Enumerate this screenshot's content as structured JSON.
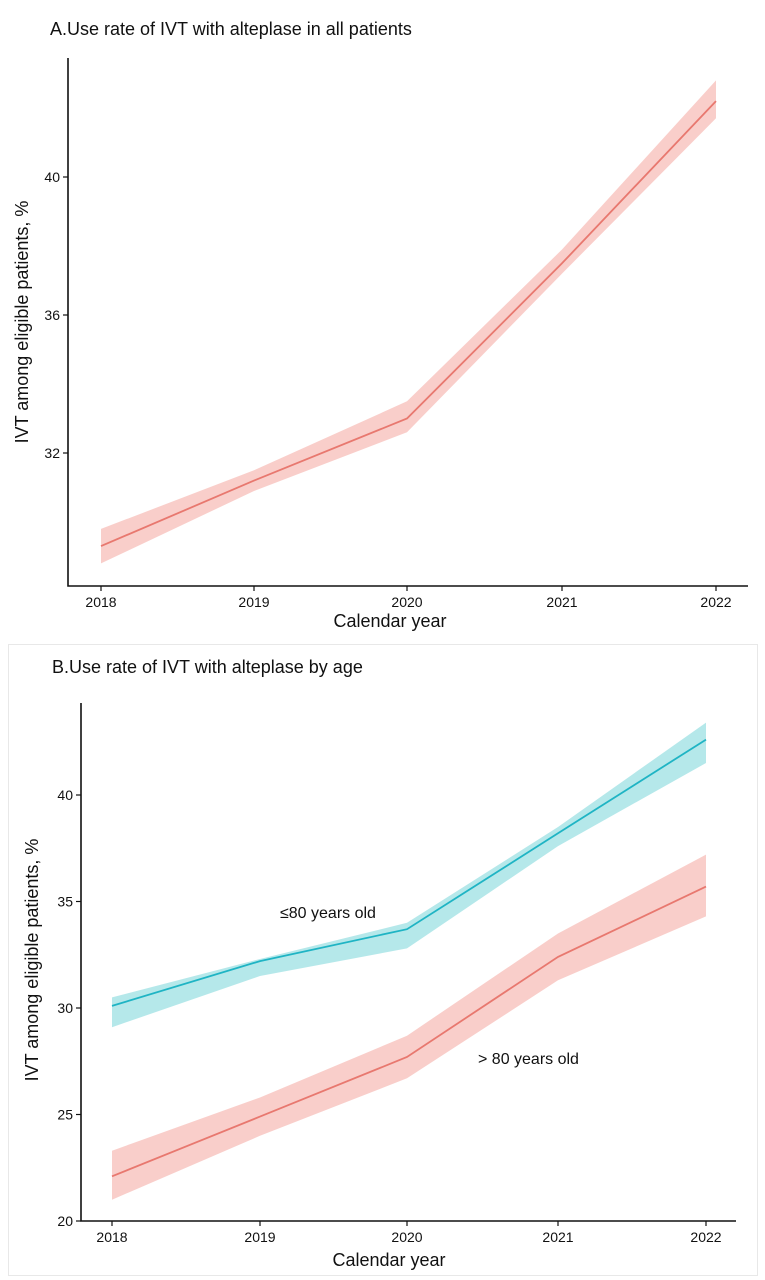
{
  "chart_data": [
    {
      "type": "line",
      "title": "A.Use rate of IVT with  alteplase in all patients",
      "xlabel": "Calendar year",
      "ylabel": "IVT among eligible patients, %",
      "x": [
        "2018",
        "2019",
        "2020",
        "2021",
        "2022"
      ],
      "yticks": [
        32,
        36,
        40
      ],
      "ylim": [
        28.3,
        43.6
      ],
      "series": [
        {
          "color": "#e8786f",
          "band_color": "#f8c5c1",
          "values": [
            29.3,
            31.2,
            33.0,
            37.5,
            42.2
          ],
          "lower": [
            28.8,
            30.9,
            32.6,
            37.2,
            41.7
          ],
          "upper": [
            29.8,
            31.5,
            33.5,
            37.9,
            42.8
          ]
        }
      ]
    },
    {
      "type": "line",
      "title": "B.Use rate of IVT with alteplase by age",
      "xlabel": "Calendar year",
      "ylabel": "IVT among eligible patients, %",
      "x": [
        "2018",
        "2019",
        "2020",
        "2021",
        "2022"
      ],
      "yticks": [
        20,
        25,
        30,
        35,
        40
      ],
      "ylim": [
        20,
        44
      ],
      "series": [
        {
          "name": "≤80 years old",
          "color": "#1fb4c4",
          "band_color": "#a8e4e6",
          "values": [
            30.1,
            32.2,
            33.7,
            38.2,
            42.6
          ],
          "lower": [
            29.1,
            31.5,
            32.8,
            37.6,
            41.5
          ],
          "upper": [
            30.5,
            32.3,
            34.0,
            38.5,
            43.4
          ]
        },
        {
          "name": "> 80 years old",
          "color": "#e8786f",
          "band_color": "#f8c5c1",
          "values": [
            22.1,
            24.9,
            27.7,
            32.4,
            35.7
          ],
          "lower": [
            21.0,
            24.0,
            26.7,
            31.3,
            34.3
          ],
          "upper": [
            23.3,
            25.8,
            28.7,
            33.5,
            37.2
          ]
        }
      ]
    }
  ]
}
